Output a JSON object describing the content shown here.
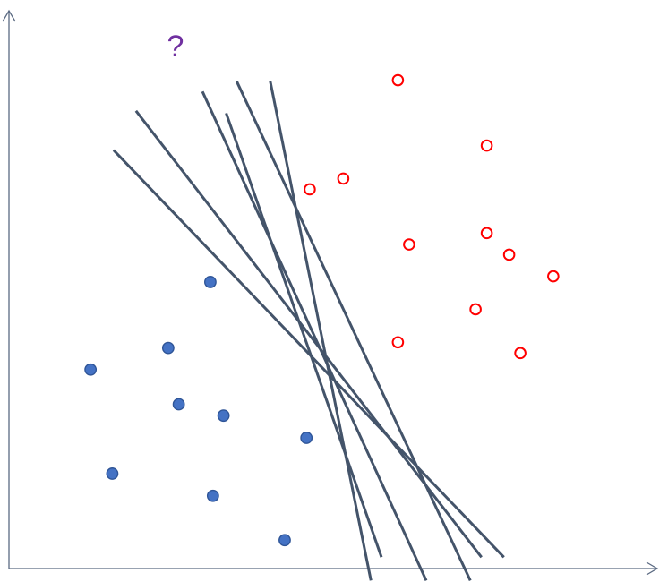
{
  "annotation": {
    "text": "?",
    "color": "#7030a0"
  },
  "colors": {
    "axis": "#5b6a82",
    "lines": "#44546a",
    "class_a_fill": "#4472c4",
    "class_a_stroke": "#2f5597",
    "class_b_stroke": "#ff0000"
  },
  "chart_data": {
    "type": "scatter",
    "title": "",
    "xlabel": "",
    "ylabel": "",
    "grid": false,
    "xlim": [
      0,
      100
    ],
    "ylim": [
      0,
      100
    ],
    "series": [
      {
        "marker": "filled-circle",
        "points": [
          [
            30.6,
            50.4
          ],
          [
            12.4,
            35.0
          ],
          [
            24.2,
            38.8
          ],
          [
            25.8,
            28.9
          ],
          [
            32.6,
            26.9
          ],
          [
            15.7,
            16.7
          ],
          [
            31.0,
            12.8
          ],
          [
            45.2,
            23.0
          ],
          [
            41.9,
            5.0
          ]
        ]
      },
      {
        "marker": "hollow-circle",
        "points": [
          [
            59.1,
            85.9
          ],
          [
            72.6,
            74.4
          ],
          [
            50.8,
            68.6
          ],
          [
            45.7,
            66.7
          ],
          [
            60.8,
            57.0
          ],
          [
            72.6,
            59.0
          ],
          [
            76.0,
            55.2
          ],
          [
            82.7,
            51.4
          ],
          [
            70.9,
            45.6
          ],
          [
            59.1,
            39.8
          ],
          [
            77.7,
            37.9
          ]
        ]
      }
    ],
    "boundary_lines": [
      {
        "from": [
          15.9,
          73.6
        ],
        "to": [
          75.2,
          2.0
        ]
      },
      {
        "from": [
          19.3,
          80.5
        ],
        "to": [
          71.8,
          2.0
        ]
      },
      {
        "from": [
          29.4,
          83.9
        ],
        "to": [
          63.4,
          -2.1
        ]
      },
      {
        "from": [
          34.6,
          85.7
        ],
        "to": [
          70.1,
          -2.1
        ]
      },
      {
        "from": [
          33.0,
          80.1
        ],
        "to": [
          56.6,
          2.0
        ]
      },
      {
        "from": [
          39.7,
          85.7
        ],
        "to": [
          55.0,
          -2.1
        ]
      }
    ]
  }
}
